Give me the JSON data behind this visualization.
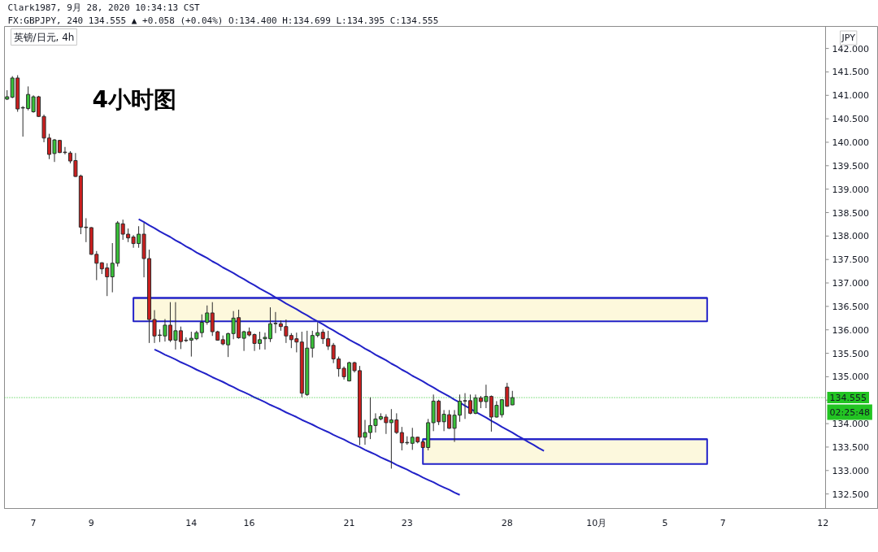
{
  "chart_data": {
    "type": "candlestick",
    "title": "英镑/日元, 4h",
    "subtitle": "FX:GBPJPY, 240 134.555 ▲ +0.058 (+0.04%) O:134.400 H:134.699 L:134.395 C:134.555",
    "ylabel": "JPY",
    "annotations": [
      "Clark1987, 9月 28, 2020 10:34:13 CST",
      "4小时图",
      "02:25:48"
    ],
    "categories": [
      null,
      null,
      null,
      null,
      null,
      "7",
      null,
      null,
      null,
      null,
      null,
      null,
      null,
      null,
      null,
      null,
      "9",
      null,
      null,
      null,
      null,
      null,
      null,
      null,
      null,
      null,
      null,
      null,
      null,
      null,
      null,
      null,
      null,
      null,
      null,
      "14",
      null,
      null,
      null,
      null,
      null,
      null,
      null,
      null,
      null,
      null,
      "16",
      null,
      null,
      null,
      null,
      null,
      null,
      null,
      null,
      null,
      null,
      null,
      null,
      null,
      null,
      null,
      null,
      null,
      null,
      "21",
      null,
      null,
      null,
      null,
      null,
      null,
      null,
      null,
      null,
      null,
      "23",
      null,
      null,
      null,
      null,
      null,
      null,
      null,
      null,
      null,
      null,
      null,
      null,
      null,
      null,
      null,
      null,
      null,
      null,
      "28",
      null,
      null,
      null,
      null,
      null,
      null,
      null,
      null,
      null,
      null,
      null,
      null,
      null,
      null,
      null,
      null,
      "10月",
      null,
      null,
      null,
      null,
      null,
      null,
      null,
      null,
      null,
      null,
      null,
      null,
      "5",
      null,
      null,
      null,
      null,
      null,
      null,
      null,
      null,
      null,
      null,
      "7",
      null,
      null,
      null,
      null,
      null,
      null,
      null,
      null,
      null,
      null,
      null,
      null,
      null,
      null,
      null,
      null,
      null,
      null,
      "12"
    ],
    "ohlc": [
      [
        140.92,
        141.11,
        140.9,
        140.97
      ],
      [
        140.96,
        141.41,
        140.94,
        141.37
      ],
      [
        141.37,
        141.43,
        140.65,
        140.71
      ],
      [
        140.73,
        140.77,
        140.12,
        140.74
      ],
      [
        140.72,
        141.19,
        140.68,
        141.02
      ],
      [
        140.65,
        141.0,
        140.63,
        140.97
      ],
      [
        140.97,
        140.99,
        140.54,
        140.55
      ],
      [
        140.55,
        140.59,
        140.0,
        140.09
      ],
      [
        140.09,
        140.18,
        139.64,
        139.74
      ],
      [
        139.76,
        140.07,
        139.58,
        140.05
      ],
      [
        140.04,
        140.05,
        139.77,
        139.78
      ],
      [
        139.79,
        139.9,
        139.74,
        139.78
      ],
      [
        139.77,
        139.81,
        139.55,
        139.6
      ],
      [
        139.61,
        139.77,
        139.26,
        139.27
      ],
      [
        139.28,
        139.31,
        138.04,
        138.19
      ],
      [
        138.19,
        138.38,
        137.87,
        138.18
      ],
      [
        138.18,
        138.19,
        137.6,
        137.61
      ],
      [
        137.61,
        137.68,
        137.06,
        137.42
      ],
      [
        137.43,
        137.44,
        137.19,
        137.3
      ],
      [
        137.32,
        137.42,
        136.72,
        137.13
      ],
      [
        137.13,
        137.85,
        136.8,
        137.42
      ],
      [
        137.42,
        138.32,
        137.35,
        138.28
      ],
      [
        138.26,
        138.35,
        137.92,
        138.04
      ],
      [
        138.04,
        138.16,
        137.87,
        137.96
      ],
      [
        137.98,
        138.02,
        137.75,
        137.84
      ],
      [
        137.84,
        138.21,
        137.75,
        138.04
      ],
      [
        138.04,
        138.28,
        137.12,
        137.52
      ],
      [
        137.52,
        137.71,
        135.72,
        136.22
      ],
      [
        136.22,
        136.42,
        135.72,
        135.87
      ],
      [
        135.88,
        136.01,
        135.74,
        135.89
      ],
      [
        135.87,
        136.23,
        135.75,
        136.1
      ],
      [
        136.1,
        136.59,
        135.74,
        135.78
      ],
      [
        135.78,
        136.59,
        135.58,
        135.98
      ],
      [
        135.98,
        136.07,
        135.59,
        135.75
      ],
      [
        135.78,
        135.84,
        135.74,
        135.77
      ],
      [
        135.78,
        135.96,
        135.43,
        135.82
      ],
      [
        135.81,
        135.98,
        135.78,
        135.94
      ],
      [
        135.94,
        136.33,
        135.84,
        136.16
      ],
      [
        136.16,
        136.52,
        136.11,
        136.36
      ],
      [
        136.36,
        136.59,
        135.87,
        135.96
      ],
      [
        135.96,
        135.98,
        135.77,
        135.78
      ],
      [
        135.79,
        135.88,
        135.67,
        135.7
      ],
      [
        135.68,
        135.94,
        135.42,
        135.92
      ],
      [
        135.92,
        136.4,
        135.8,
        136.25
      ],
      [
        136.26,
        136.43,
        135.81,
        135.83
      ],
      [
        135.82,
        135.98,
        135.55,
        135.96
      ],
      [
        135.96,
        136.05,
        135.86,
        135.89
      ],
      [
        135.9,
        135.92,
        135.55,
        135.71
      ],
      [
        135.71,
        135.96,
        135.58,
        135.79
      ],
      [
        135.81,
        135.94,
        135.58,
        135.84
      ],
      [
        135.81,
        136.48,
        135.74,
        136.13
      ],
      [
        136.13,
        136.38,
        135.93,
        136.14
      ],
      [
        136.13,
        136.2,
        135.98,
        136.07
      ],
      [
        136.07,
        136.22,
        135.72,
        135.87
      ],
      [
        135.88,
        135.93,
        135.61,
        135.79
      ],
      [
        135.81,
        135.94,
        135.52,
        135.74
      ],
      [
        135.74,
        135.96,
        134.56,
        134.65
      ],
      [
        134.62,
        135.98,
        134.59,
        135.61
      ],
      [
        135.61,
        135.98,
        135.41,
        135.88
      ],
      [
        135.88,
        136.16,
        135.84,
        135.94
      ],
      [
        135.95,
        136.01,
        135.7,
        135.81
      ],
      [
        135.81,
        135.98,
        135.57,
        135.65
      ],
      [
        135.67,
        135.72,
        135.29,
        135.38
      ],
      [
        135.38,
        135.43,
        135.0,
        135.17
      ],
      [
        135.18,
        135.22,
        134.94,
        135.0
      ],
      [
        134.91,
        135.32,
        134.9,
        135.3
      ],
      [
        135.3,
        135.32,
        135.09,
        135.13
      ],
      [
        135.13,
        135.23,
        133.54,
        133.71
      ],
      [
        133.71,
        134.08,
        133.55,
        133.81
      ],
      [
        133.81,
        134.56,
        133.67,
        133.96
      ],
      [
        133.96,
        134.22,
        133.81,
        134.1
      ],
      [
        134.1,
        134.22,
        134.07,
        134.15
      ],
      [
        134.14,
        134.2,
        133.78,
        134.02
      ],
      [
        134.02,
        134.31,
        133.04,
        134.08
      ],
      [
        134.08,
        134.22,
        133.78,
        133.81
      ],
      [
        133.81,
        133.93,
        133.43,
        133.59
      ],
      [
        133.59,
        133.73,
        133.55,
        133.6
      ],
      [
        133.58,
        133.91,
        133.44,
        133.71
      ],
      [
        133.71,
        133.72,
        133.58,
        133.61
      ],
      [
        133.61,
        133.64,
        133.48,
        133.49
      ],
      [
        133.49,
        134.1,
        133.43,
        134.02
      ],
      [
        134.02,
        134.62,
        133.84,
        134.48
      ],
      [
        134.48,
        134.51,
        133.97,
        134.04
      ],
      [
        134.04,
        134.29,
        133.84,
        134.2
      ],
      [
        134.19,
        134.29,
        133.89,
        133.9
      ],
      [
        133.9,
        134.29,
        133.61,
        134.18
      ],
      [
        134.18,
        134.62,
        134.04,
        134.48
      ],
      [
        134.48,
        134.65,
        134.1,
        134.49
      ],
      [
        134.49,
        134.62,
        134.2,
        134.22
      ],
      [
        134.22,
        134.62,
        134.2,
        134.55
      ],
      [
        134.55,
        134.59,
        134.33,
        134.47
      ],
      [
        134.47,
        134.83,
        134.33,
        134.58
      ],
      [
        134.58,
        134.6,
        133.83,
        134.14
      ],
      [
        134.14,
        134.48,
        134.13,
        134.39
      ],
      [
        134.19,
        134.52,
        134.13,
        134.51
      ],
      [
        134.78,
        134.87,
        134.36,
        134.37
      ],
      [
        134.4,
        134.699,
        134.395,
        134.555
      ],
      null,
      null,
      null,
      null,
      null,
      null,
      null,
      null,
      null,
      null,
      null,
      null,
      null,
      null,
      null,
      null,
      null,
      null,
      null,
      null,
      null,
      null,
      null,
      null,
      null,
      null,
      null,
      null,
      null,
      null,
      null,
      null,
      null,
      null,
      null,
      null,
      null,
      null,
      null,
      null,
      null,
      null,
      null,
      null,
      null,
      null,
      null,
      null,
      null,
      null,
      null,
      null,
      null,
      null,
      null,
      null,
      null,
      null,
      null
    ],
    "colors": [
      "#38c238",
      "#38c238",
      "#cc1e1e",
      "#38c238",
      "#38c238",
      "#38c238",
      "#cc1e1e",
      "#cc1e1e",
      "#cc1e1e",
      "#38c238",
      "#cc1e1e",
      "#cc1e1e",
      "#cc1e1e",
      "#cc1e1e",
      "#cc1e1e",
      "#cc1e1e",
      "#cc1e1e",
      "#cc1e1e",
      "#cc1e1e",
      "#cc1e1e",
      "#38c238",
      "#38c238",
      "#cc1e1e",
      "#cc1e1e",
      "#cc1e1e",
      "#38c238",
      "#cc1e1e",
      "#cc1e1e",
      "#cc1e1e",
      "#38c238",
      "#38c238",
      "#cc1e1e",
      "#38c238",
      "#cc1e1e",
      "#cc1e1e",
      "#38c238",
      "#38c238",
      "#38c238",
      "#38c238",
      "#cc1e1e",
      "#cc1e1e",
      "#cc1e1e",
      "#38c238",
      "#38c238",
      "#cc1e1e",
      "#38c238",
      "#cc1e1e",
      "#cc1e1e",
      "#38c238",
      "#38c238",
      "#38c238",
      "#38c238",
      "#cc1e1e",
      "#cc1e1e",
      "#cc1e1e",
      "#cc1e1e",
      "#cc1e1e",
      "#38c238",
      "#38c238",
      "#38c238",
      "#cc1e1e",
      "#cc1e1e",
      "#cc1e1e",
      "#cc1e1e",
      "#cc1e1e",
      "#38c238",
      "#cc1e1e",
      "#cc1e1e",
      "#38c238",
      "#38c238",
      "#38c238",
      "#38c238",
      "#cc1e1e",
      "#38c238",
      "#cc1e1e",
      "#cc1e1e",
      "#38c238",
      "#38c238",
      "#cc1e1e",
      "#cc1e1e",
      "#38c238",
      "#38c238",
      "#cc1e1e",
      "#38c238",
      "#cc1e1e",
      "#38c238",
      "#38c238",
      "#38c238",
      "#cc1e1e",
      "#38c238",
      "#cc1e1e",
      "#38c238",
      "#cc1e1e",
      "#38c238",
      "#38c238",
      "#cc1e1e",
      "#38c238",
      null,
      null,
      null,
      null,
      null,
      null,
      null,
      null,
      null,
      null,
      null,
      null,
      null,
      null,
      null,
      null,
      null,
      null,
      null,
      null,
      null,
      null,
      null,
      null,
      null,
      null,
      null,
      null,
      null,
      null,
      null,
      null,
      null,
      null,
      null,
      null,
      null,
      null,
      null,
      null,
      null,
      null,
      null,
      null,
      null,
      null,
      null,
      null,
      null,
      null,
      null,
      null,
      null,
      null,
      null,
      null,
      null,
      null,
      null
    ],
    "series": [
      {
        "type": "line",
        "color": "#2222c8",
        "values": [
          null,
          null,
          null,
          null,
          null,
          null,
          null,
          null,
          null,
          null,
          null,
          null,
          null,
          null,
          null,
          null,
          null,
          null,
          null,
          null,
          null,
          null,
          null,
          null,
          136.68,
          136.68,
          136.68,
          136.68,
          136.68,
          136.68,
          136.68,
          136.68,
          136.68,
          136.68,
          136.68,
          136.68,
          136.68,
          136.68,
          136.68,
          136.68,
          136.68,
          136.68,
          136.68,
          136.68,
          136.68,
          136.68,
          136.68,
          136.68,
          136.68,
          136.68,
          136.68,
          136.68,
          136.68,
          136.68,
          136.68,
          136.68,
          136.68,
          136.68,
          136.68,
          136.68,
          136.68,
          136.68,
          136.68,
          136.68,
          136.68,
          136.68,
          136.68,
          136.68,
          136.68,
          136.68,
          136.68,
          136.68,
          136.68,
          136.68,
          136.68,
          136.68,
          136.68,
          136.68,
          136.68,
          136.68,
          136.68,
          136.68,
          136.68,
          136.68,
          136.68,
          136.68,
          136.68,
          136.68,
          136.68,
          136.68,
          136.68,
          136.68,
          136.68,
          136.68,
          136.68,
          136.68,
          136.68,
          136.68,
          136.68,
          136.68,
          136.68,
          136.68,
          136.68,
          136.68,
          136.68,
          136.68,
          136.68,
          136.68,
          136.68,
          136.68,
          136.68,
          136.68,
          136.68,
          136.68,
          136.68,
          136.68,
          136.68,
          136.68,
          136.68,
          136.68,
          136.68,
          136.68,
          136.68,
          136.68,
          136.68,
          136.68,
          136.68,
          136.68,
          136.68,
          136.68,
          136.68,
          136.68,
          136.68,
          136.68,
          null,
          null,
          null,
          null,
          null,
          null,
          null,
          null,
          null,
          null,
          null,
          null,
          null,
          null,
          null,
          null,
          null,
          null,
          null,
          null,
          null,
          null
        ],
        "upper": [
          null,
          null,
          null,
          null,
          null,
          null,
          null,
          null,
          null,
          null,
          null,
          null,
          null,
          null,
          null,
          null,
          null,
          null,
          null,
          null,
          null,
          null,
          null,
          null,
          136.68,
          136.68,
          136.68,
          136.68,
          136.68,
          136.68,
          136.68,
          136.68,
          136.68,
          136.68,
          136.68,
          136.68,
          136.68,
          136.68,
          136.68,
          136.68,
          136.68,
          136.68,
          136.68,
          136.68,
          136.68,
          136.68,
          136.68,
          136.68,
          136.68,
          136.68,
          136.68,
          136.68,
          136.68,
          136.68,
          136.68,
          136.68,
          136.68,
          136.68,
          136.68,
          136.68,
          136.68,
          136.68,
          136.68,
          136.68,
          136.68,
          136.68,
          136.68,
          136.68,
          136.68,
          136.68,
          136.68,
          136.68,
          136.68,
          136.68,
          136.68,
          136.68,
          136.68,
          136.68,
          136.68,
          136.68,
          136.68,
          136.68,
          136.68,
          136.68,
          136.68,
          136.68,
          136.68,
          136.68,
          136.68,
          136.68,
          136.68,
          136.68,
          136.68,
          136.68,
          136.68,
          136.68,
          136.68,
          136.68,
          136.68,
          136.68,
          136.68,
          136.68,
          136.68,
          136.68,
          136.68,
          136.68,
          136.68,
          136.68,
          136.68,
          136.68,
          136.68,
          136.68,
          136.68,
          136.68,
          136.68,
          136.68,
          136.68,
          136.68,
          136.68,
          136.68,
          136.68,
          136.68,
          136.68,
          136.68,
          136.68,
          136.68,
          136.68,
          136.68,
          136.68,
          136.68,
          136.68,
          136.68,
          136.68,
          136.68,
          null,
          null,
          null,
          null,
          null,
          null,
          null,
          null,
          null,
          null,
          null,
          null,
          null,
          null,
          null,
          null,
          null,
          null,
          null,
          null,
          null,
          null
        ],
        "lower": [
          null,
          null,
          null,
          null,
          null,
          null,
          null,
          null,
          null,
          null,
          null,
          null,
          null,
          null,
          null,
          null,
          null,
          null,
          null,
          null,
          null,
          null,
          null,
          null,
          136.18,
          136.18,
          136.18,
          136.18,
          136.18,
          136.18,
          136.18,
          136.18,
          136.18,
          136.18,
          136.18,
          136.18,
          136.18,
          136.18,
          136.18,
          136.18,
          136.18,
          136.18,
          136.18,
          136.18,
          136.18,
          136.18,
          136.18,
          136.18,
          136.18,
          136.18,
          136.18,
          136.18,
          136.18,
          136.18,
          136.18,
          136.18,
          136.18,
          136.18,
          136.18,
          136.18,
          136.18,
          136.18,
          136.18,
          136.18,
          136.18,
          136.18,
          136.18,
          136.18,
          136.18,
          136.18,
          136.18,
          136.18,
          136.18,
          136.18,
          136.18,
          136.18,
          136.18,
          136.18,
          136.18,
          136.18,
          136.18,
          136.18,
          136.18,
          136.18,
          136.18,
          136.18,
          136.18,
          136.18,
          136.18,
          136.18,
          136.18,
          136.18,
          136.18,
          136.18,
          136.18,
          136.18,
          136.18,
          136.18,
          136.18,
          136.18,
          136.18,
          136.18,
          136.18,
          136.18,
          136.18,
          136.18,
          136.18,
          136.18,
          136.18,
          136.18,
          136.18,
          136.18,
          136.18,
          136.18,
          136.18,
          136.18,
          136.18,
          136.18,
          136.18,
          136.18,
          136.18,
          136.18,
          136.18,
          136.18,
          136.18,
          136.18,
          136.18,
          136.18,
          136.18,
          136.18,
          136.18,
          136.18,
          136.18,
          136.18,
          null,
          null,
          null,
          null,
          null,
          null,
          null,
          null,
          null,
          null,
          null,
          null,
          null,
          null,
          null,
          null,
          null,
          null,
          null,
          null,
          null,
          null
        ]
      },
      {
        "type": "line",
        "color": "#2222c8",
        "values": [
          null,
          null,
          null,
          null,
          null,
          null,
          null,
          null,
          null,
          null,
          null,
          null,
          null,
          null,
          null,
          null,
          null,
          null,
          null,
          null,
          null,
          null,
          null,
          null,
          null,
          null,
          null,
          null,
          null,
          null,
          null,
          null,
          null,
          null,
          null,
          null,
          null,
          null,
          null,
          null,
          null,
          null,
          null,
          null,
          null,
          null,
          null,
          null,
          null,
          null,
          null,
          null,
          null,
          null,
          null,
          null,
          null,
          null,
          null,
          null,
          null,
          null,
          null,
          null,
          null,
          null,
          null,
          null,
          null,
          null,
          null,
          null,
          null,
          null,
          null,
          null,
          null,
          null,
          null,
          133.67,
          133.67,
          133.67,
          133.67,
          133.67,
          133.67,
          133.67,
          133.67,
          133.67,
          133.67,
          133.67,
          133.67,
          133.67,
          133.67,
          133.67,
          133.67,
          133.67,
          133.67,
          133.67,
          133.67,
          133.67,
          133.67,
          133.67,
          133.67,
          133.67,
          133.67,
          133.67,
          133.67,
          133.67,
          133.67,
          133.67,
          133.67,
          133.67,
          133.67,
          133.67,
          133.67,
          133.67,
          133.67,
          133.67,
          133.67,
          133.67,
          133.67,
          133.67,
          133.67,
          133.67,
          133.67,
          133.67,
          133.67,
          133.67,
          133.67,
          133.67,
          133.67,
          133.67,
          133.67,
          133.67,
          null,
          null,
          null,
          null,
          null,
          null,
          null,
          null,
          null,
          null,
          null,
          null,
          null,
          null,
          null,
          null,
          null,
          null,
          null,
          null,
          null,
          null
        ],
        "upper": [
          null,
          null,
          null,
          null,
          null,
          null,
          null,
          null,
          null,
          null,
          null,
          null,
          null,
          null,
          null,
          null,
          null,
          null,
          null,
          null,
          null,
          null,
          null,
          null,
          null,
          null,
          null,
          null,
          null,
          null,
          null,
          null,
          null,
          null,
          null,
          null,
          null,
          null,
          null,
          null,
          null,
          null,
          null,
          null,
          null,
          null,
          null,
          null,
          null,
          null,
          null,
          null,
          null,
          null,
          null,
          null,
          null,
          null,
          null,
          null,
          null,
          null,
          null,
          null,
          null,
          null,
          null,
          null,
          null,
          null,
          null,
          null,
          null,
          null,
          null,
          null,
          null,
          null,
          null,
          133.67,
          133.67,
          133.67,
          133.67,
          133.67,
          133.67,
          133.67,
          133.67,
          133.67,
          133.67,
          133.67,
          133.67,
          133.67,
          133.67,
          133.67,
          133.67,
          133.67,
          133.67,
          133.67,
          133.67,
          133.67,
          133.67,
          133.67,
          133.67,
          133.67,
          133.67,
          133.67,
          133.67,
          133.67,
          133.67,
          133.67,
          133.67,
          133.67,
          133.67,
          133.67,
          133.67,
          133.67,
          133.67,
          133.67,
          133.67,
          133.67,
          133.67,
          133.67,
          133.67,
          133.67,
          133.67,
          133.67,
          133.67,
          133.67,
          133.67,
          133.67,
          133.67,
          133.67,
          133.67,
          133.67,
          null,
          null,
          null,
          null,
          null,
          null,
          null,
          null,
          null,
          null,
          null,
          null,
          null,
          null,
          null,
          null,
          null,
          null,
          null,
          null,
          null,
          null
        ],
        "lower": [
          null,
          null,
          null,
          null,
          null,
          null,
          null,
          null,
          null,
          null,
          null,
          null,
          null,
          null,
          null,
          null,
          null,
          null,
          null,
          null,
          null,
          null,
          null,
          null,
          null,
          null,
          null,
          null,
          null,
          null,
          null,
          null,
          null,
          null,
          null,
          null,
          null,
          null,
          null,
          null,
          null,
          null,
          null,
          null,
          null,
          null,
          null,
          null,
          null,
          null,
          null,
          null,
          null,
          null,
          null,
          null,
          null,
          null,
          null,
          null,
          null,
          null,
          null,
          null,
          null,
          null,
          null,
          null,
          null,
          null,
          null,
          null,
          null,
          null,
          null,
          null,
          null,
          null,
          null,
          133.14,
          133.14,
          133.14,
          133.14,
          133.14,
          133.14,
          133.14,
          133.14,
          133.14,
          133.14,
          133.14,
          133.14,
          133.14,
          133.14,
          133.14,
          133.14,
          133.14,
          133.14,
          133.14,
          133.14,
          133.14,
          133.14,
          133.14,
          133.14,
          133.14,
          133.14,
          133.14,
          133.14,
          133.14,
          133.14,
          133.14,
          133.14,
          133.14,
          133.14,
          133.14,
          133.14,
          133.14,
          133.14,
          133.14,
          133.14,
          133.14,
          133.14,
          133.14,
          133.14,
          133.14,
          133.14,
          133.14,
          133.14,
          133.14,
          133.14,
          133.14,
          133.14,
          133.14,
          133.14,
          133.14,
          null,
          null,
          null,
          null,
          null,
          null,
          null,
          null,
          null,
          null,
          null,
          null,
          null,
          null,
          null,
          null,
          null,
          null,
          null,
          null,
          null,
          null
        ]
      },
      {
        "type": "line",
        "color": "#2222c8",
        "values": [
          null,
          null,
          null,
          null,
          null,
          null,
          null,
          null,
          null,
          null,
          null,
          null,
          null,
          null,
          null,
          null,
          null,
          null,
          null,
          null,
          null,
          null,
          null,
          null,
          null,
          138.36,
          138.3,
          138.23,
          138.17,
          138.1,
          138.04,
          137.98,
          137.91,
          137.85,
          137.78,
          137.72,
          137.65,
          137.59,
          137.53,
          137.46,
          137.4,
          137.33,
          137.27,
          137.21,
          137.14,
          137.08,
          137.01,
          136.95,
          136.88,
          136.82,
          136.76,
          136.69,
          136.63,
          136.56,
          136.5,
          136.44,
          136.37,
          136.31,
          136.24,
          136.18,
          136.12,
          136.05,
          135.99,
          135.92,
          135.86,
          135.79,
          135.73,
          135.67,
          135.6,
          135.54,
          135.47,
          135.41,
          135.35,
          135.28,
          135.22,
          135.15,
          135.09,
          135.02,
          134.96,
          134.9,
          134.83,
          134.77,
          134.7,
          134.64,
          134.58,
          134.51,
          134.45,
          134.38,
          134.32,
          134.25,
          134.19,
          134.13,
          134.06,
          134.0,
          133.93,
          133.87,
          133.81,
          133.74,
          133.68,
          133.61,
          133.55,
          133.48,
          133.42,
          null,
          null,
          null,
          null,
          null,
          null,
          null,
          null,
          null,
          null,
          null,
          null,
          null,
          null,
          null,
          null,
          null,
          null,
          null,
          null,
          null,
          null,
          null,
          null,
          null,
          null,
          null,
          null,
          null,
          null,
          null,
          null,
          null,
          null,
          null,
          null,
          null,
          null,
          null,
          null,
          null,
          null,
          null,
          null,
          null,
          null,
          null,
          null,
          null,
          null,
          null,
          null,
          null
        ]
      },
      {
        "type": "line",
        "color": "#2222c8",
        "values": [
          null,
          null,
          null,
          null,
          null,
          null,
          null,
          null,
          null,
          null,
          null,
          null,
          null,
          null,
          null,
          null,
          null,
          null,
          null,
          null,
          null,
          null,
          null,
          null,
          null,
          null,
          null,
          null,
          135.58,
          135.53,
          135.47,
          135.42,
          135.37,
          135.31,
          135.26,
          135.21,
          135.15,
          135.1,
          135.05,
          134.99,
          134.94,
          134.89,
          134.83,
          134.78,
          134.72,
          134.67,
          134.62,
          134.56,
          134.51,
          134.46,
          134.4,
          134.35,
          134.3,
          134.24,
          134.19,
          134.14,
          134.08,
          134.03,
          133.98,
          133.92,
          133.87,
          133.82,
          133.76,
          133.71,
          133.66,
          133.6,
          133.55,
          133.5,
          133.44,
          133.39,
          133.34,
          133.28,
          133.23,
          133.18,
          133.12,
          133.07,
          133.02,
          132.96,
          132.91,
          132.85,
          132.8,
          132.75,
          132.69,
          132.64,
          132.59,
          132.53,
          132.48,
          null,
          null,
          null,
          null,
          null,
          null,
          null,
          null,
          null,
          null,
          null,
          null,
          null,
          null,
          null,
          null,
          null,
          null,
          null,
          null,
          null,
          null,
          null,
          null,
          null,
          null,
          null,
          null,
          null,
          null,
          null,
          null,
          null,
          null,
          null,
          null,
          null,
          null,
          null,
          null,
          null,
          null,
          null,
          null,
          null,
          null,
          null,
          null,
          null,
          null,
          null,
          null,
          null,
          null,
          null,
          null,
          null,
          null,
          null,
          null,
          null,
          null,
          null,
          null,
          null,
          null,
          null,
          null,
          null
        ]
      }
    ],
    "ref_lines": [
      {
        "axis": "y",
        "value": 134.555,
        "label": "134.555",
        "color": "#22c422",
        "line_style": "dotted"
      }
    ],
    "ylim": [
      132.19,
      142.47
    ],
    "yticks": [
      {
        "value": 132.5,
        "label": "132.500"
      },
      {
        "value": 133,
        "label": "133.000"
      },
      {
        "value": 133.5,
        "label": "133.500"
      },
      {
        "value": 134,
        "label": "134.000"
      },
      {
        "value": 134.5,
        "label": null
      },
      {
        "value": 135,
        "label": "135.000"
      },
      {
        "value": 135.5,
        "label": "135.500"
      },
      {
        "value": 136,
        "label": "136.000"
      },
      {
        "value": 136.5,
        "label": "136.500"
      },
      {
        "value": 137,
        "label": "137.000"
      },
      {
        "value": 137.5,
        "label": "137.500"
      },
      {
        "value": 138,
        "label": "138.000"
      },
      {
        "value": 138.5,
        "label": "138.500"
      },
      {
        "value": 139,
        "label": "139.000"
      },
      {
        "value": 139.5,
        "label": "139.500"
      },
      {
        "value": 140,
        "label": "140.000"
      },
      {
        "value": 140.5,
        "label": "140.500"
      },
      {
        "value": 141,
        "label": "141.000"
      },
      {
        "value": 141.5,
        "label": "141.500"
      },
      {
        "value": 142,
        "label": "142.000"
      }
    ]
  }
}
